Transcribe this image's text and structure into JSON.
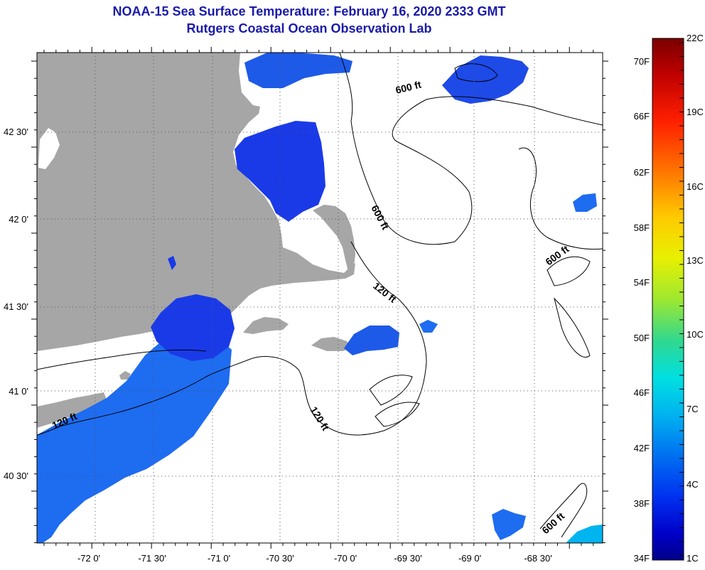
{
  "title": {
    "line1": "NOAA-15 Sea Surface Temperature:  February 16, 2020 2333 GMT",
    "line2": "Rutgers Coastal Ocean Observation Lab"
  },
  "axes": {
    "lon_labels": [
      "-72 0'",
      "-71 30'",
      "-71 0'",
      "-70 30'",
      "-70 0'",
      "-69 30'",
      "-69 0'",
      "-68 30'"
    ],
    "lat_labels": [
      "42 30'",
      "42 0'",
      "41 30'",
      "41 0'",
      "40 30'"
    ]
  },
  "contour_labels": [
    "600 ft",
    "600 ft",
    "600 ft",
    "600 ft",
    "120 ft",
    "120 ft",
    "120 ft"
  ],
  "colorbar": {
    "f_labels": [
      "70F",
      "66F",
      "62F",
      "58F",
      "54F",
      "50F",
      "46F",
      "42F",
      "38F",
      "34F"
    ],
    "c_labels": [
      "22C",
      "19C",
      "16C",
      "13C",
      "10C",
      "7C",
      "4C",
      "1C"
    ],
    "colors": [
      "#7a0000",
      "#c00000",
      "#ff2000",
      "#ff7a00",
      "#ffc800",
      "#e8f000",
      "#9ee830",
      "#30d890",
      "#00e0e0",
      "#00b4f0",
      "#0070f0",
      "#0030f0",
      "#0000c8",
      "#00008a"
    ]
  },
  "colors": {
    "land": "#a6a6a6",
    "sst_cold": "#1a3ae8",
    "sst_mid": "#1e6cf0",
    "title": "#1a1aa8"
  }
}
